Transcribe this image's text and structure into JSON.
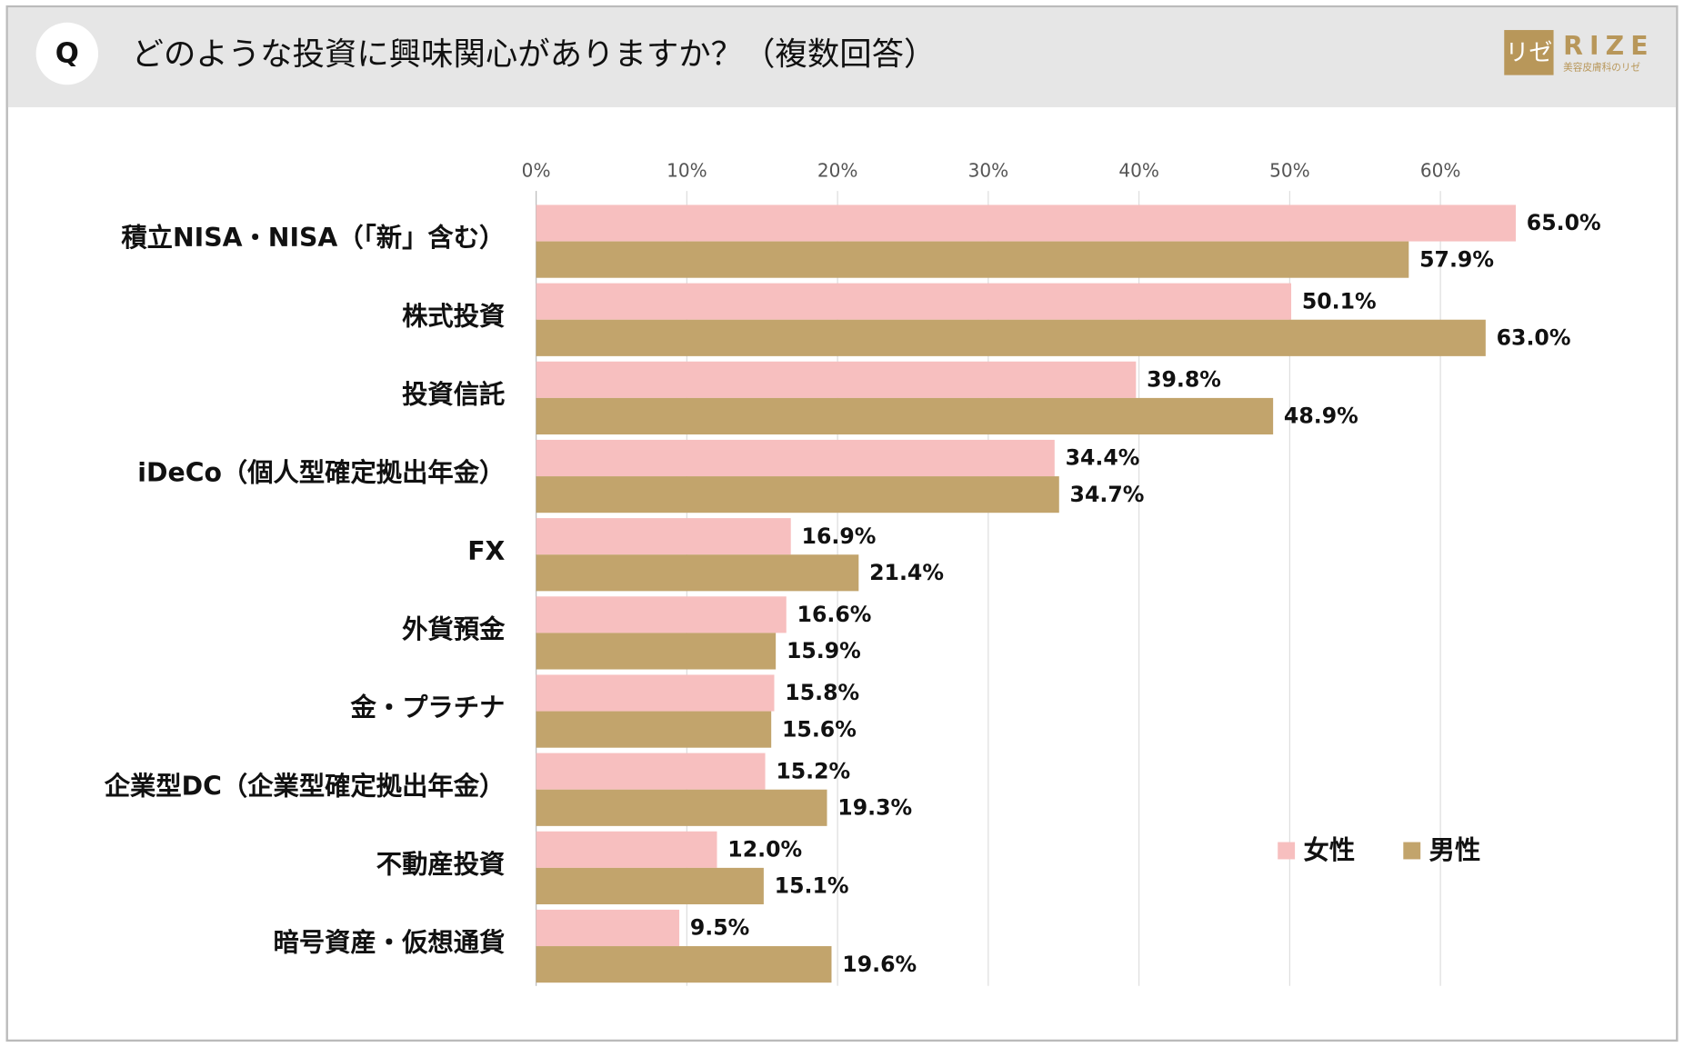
{
  "chart_data": {
    "type": "barh",
    "badge": "Q",
    "title": "どのような投資に興味関心がありますか？（複数回答）",
    "logo": {
      "mark": "リゼ",
      "name": "RIZE",
      "tagline": "美容皮膚科のリゼ"
    },
    "categories": [
      "積立NISA・NISA（「新」含む）",
      "株式投資",
      "投資信託",
      "iDeCo（個人型確定拠出年金）",
      "FX",
      "外貨預金",
      "金・プラチナ",
      "企業型DC（企業型確定拠出年金）",
      "不動産投資",
      "暗号資産・仮想通貨"
    ],
    "series": [
      {
        "name": "女性",
        "color": "#f7bfbf",
        "values": [
          65.0,
          50.1,
          39.8,
          34.4,
          16.9,
          16.6,
          15.8,
          15.2,
          12.0,
          9.5
        ],
        "value_labels": [
          "65.0%",
          "50.1%",
          "39.8%",
          "34.4%",
          "16.9%",
          "16.6%",
          "15.8%",
          "15.2%",
          "12.0%",
          "9.5%"
        ]
      },
      {
        "name": "男性",
        "color": "#c2a46c",
        "values": [
          57.9,
          63.0,
          48.9,
          34.7,
          21.4,
          15.9,
          15.6,
          19.3,
          15.1,
          19.6
        ],
        "value_labels": [
          "57.9%",
          "63.0%",
          "48.9%",
          "34.7%",
          "21.4%",
          "15.9%",
          "15.6%",
          "19.3%",
          "15.1%",
          "19.6%"
        ]
      }
    ],
    "xlim": [
      0,
      70
    ],
    "xticks": [
      {
        "value": 0,
        "label": "0%"
      },
      {
        "value": 10,
        "label": "10%"
      },
      {
        "value": 20,
        "label": "20%"
      },
      {
        "value": 30,
        "label": "30%"
      },
      {
        "value": 40,
        "label": "40%"
      },
      {
        "value": 50,
        "label": "50%"
      },
      {
        "value": 60,
        "label": "60%"
      }
    ],
    "grid": true,
    "legend": "right"
  }
}
